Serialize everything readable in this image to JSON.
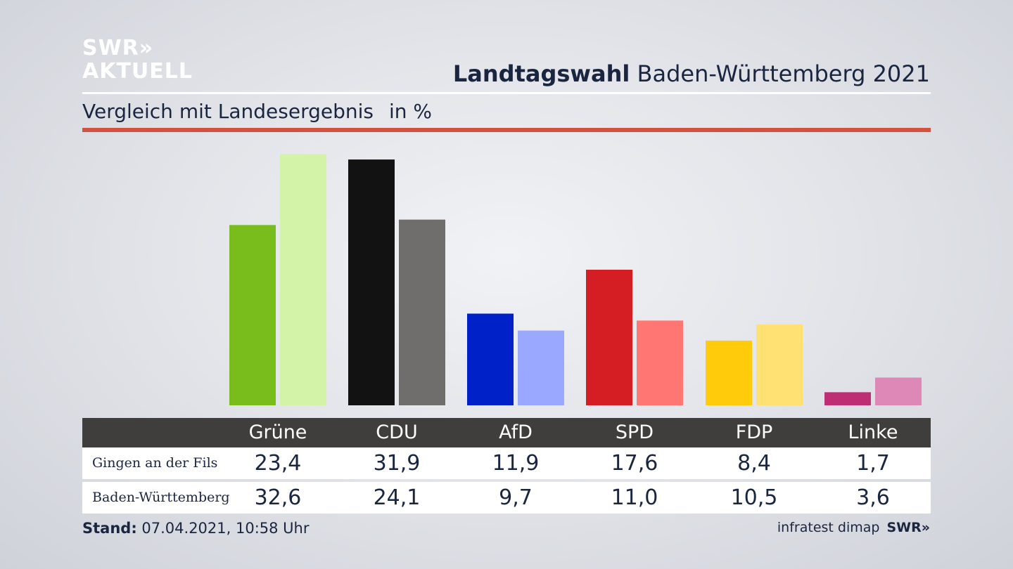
{
  "logo": {
    "line1": "SWR»",
    "line2": "AKTUELL"
  },
  "header": {
    "title_bold": "Landtagswahl",
    "title_rest": " Baden-Württemberg 2021",
    "subtitle": "Vergleich mit Landesergebnis",
    "unit": "in %"
  },
  "table": {
    "row1_label": "Gingen an der Fils",
    "row2_label": "Baden-Württemberg"
  },
  "footer": {
    "stand_label": "Stand:",
    "stand_value": " 07.04.2021, 10:58 Uhr",
    "source": "infratest dimap",
    "brand": "SWR»"
  },
  "chart_data": {
    "type": "bar",
    "title": "Landtagswahl Baden-Württemberg 2021",
    "subtitle": "Vergleich mit Landesergebnis",
    "ylabel": "in %",
    "categories": [
      "Grüne",
      "CDU",
      "AfD",
      "SPD",
      "FDP",
      "Linke"
    ],
    "value_labels": [
      [
        "23,4",
        "31,9",
        "11,9",
        "17,6",
        "8,4",
        "1,7"
      ],
      [
        "32,6",
        "24,1",
        "9,7",
        "11,0",
        "10,5",
        "3,6"
      ]
    ],
    "series": [
      {
        "name": "Gingen an der Fils",
        "values": [
          23.4,
          31.9,
          11.9,
          17.6,
          8.4,
          1.7
        ],
        "colors": [
          "#79bd1d",
          "#121212",
          "#0020c8",
          "#d41e23",
          "#ffcb0a",
          "#be2e74"
        ]
      },
      {
        "name": "Baden-Württemberg",
        "values": [
          32.6,
          24.1,
          9.7,
          11.0,
          10.5,
          3.6
        ],
        "colors": [
          "#d3f3a9",
          "#6f6e6c",
          "#9aa9ff",
          "#ff7672",
          "#ffe173",
          "#de88b7"
        ]
      }
    ],
    "ylim": [
      0,
      33
    ],
    "grid": false,
    "legend": "table-below"
  }
}
